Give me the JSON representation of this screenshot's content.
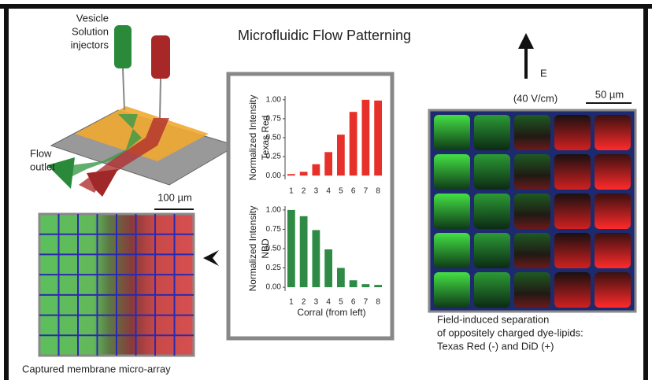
{
  "title": "Microfluidic Flow Patterning",
  "device_labels": {
    "injectors": [
      "Vesicle",
      "Solution",
      "injectors"
    ],
    "outlet": [
      "Flow",
      "outlet"
    ]
  },
  "scale_bars": {
    "left": "100 µm",
    "right": "50 µm"
  },
  "field": {
    "symbol": "E",
    "strength": "(40 V/cm)"
  },
  "captions": {
    "left": "Captured membrane micro-array",
    "right": [
      "Field-induced separation",
      "of oppositely charged dye-lipids:",
      "Texas Red (-) and DiD (+)"
    ]
  },
  "chart_data": [
    {
      "type": "bar",
      "ylabel": [
        "Normalized Intensity",
        "Texas Red"
      ],
      "categories": [
        "1",
        "2",
        "3",
        "4",
        "5",
        "6",
        "7",
        "8"
      ],
      "values": [
        0.02,
        0.05,
        0.15,
        0.31,
        0.54,
        0.84,
        1.0,
        0.99
      ],
      "color": "#e8302a",
      "ylim": [
        -0.05,
        1.05
      ],
      "yticks": [
        {
          "value": 0,
          "label": "0.00"
        },
        {
          "value": 0.25,
          "label": "0.25"
        },
        {
          "value": 0.5,
          "label": "0.50"
        },
        {
          "value": 0.75,
          "label": "0.75"
        },
        {
          "value": 1,
          "label": "1.00"
        }
      ]
    },
    {
      "type": "bar",
      "ylabel": [
        "Normalized Intensity",
        "NBD"
      ],
      "xlabel": "Corral (from left)",
      "categories": [
        "1",
        "2",
        "3",
        "4",
        "5",
        "6",
        "7",
        "8"
      ],
      "values": [
        1.0,
        0.92,
        0.74,
        0.49,
        0.25,
        0.09,
        0.04,
        0.03
      ],
      "color": "#2e8a45",
      "ylim": [
        -0.05,
        1.05
      ],
      "yticks": [
        {
          "value": 0,
          "label": "0.00"
        },
        {
          "value": 0.25,
          "label": "0.25"
        },
        {
          "value": 0.5,
          "label": "0.50"
        },
        {
          "value": 0.75,
          "label": "0.75"
        },
        {
          "value": 1,
          "label": "1.00"
        }
      ]
    }
  ]
}
